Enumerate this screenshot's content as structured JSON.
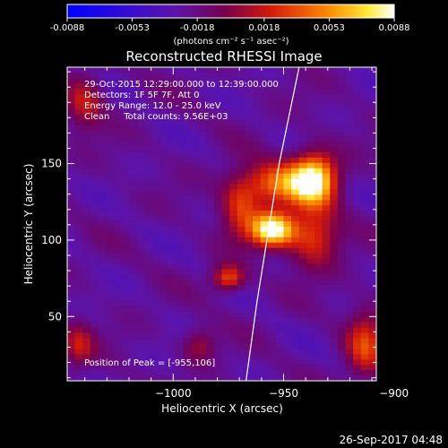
{
  "chart_data": {
    "type": "heatmap",
    "title": "Reconstructed RHESSI Image",
    "xlabel": "Heliocentric X (arcsec)",
    "ylabel": "Heliocentric Y (arcsec)",
    "xlim": [
      -1048,
      -908
    ],
    "ylim": [
      8,
      213
    ],
    "xticks": [
      -1000,
      -950,
      -900
    ],
    "yticks": [
      50,
      100,
      150
    ],
    "colorbar": {
      "range": [
        -0.0088,
        0.0088
      ],
      "tick_values": [
        -0.0088,
        -0.0053,
        -0.0018,
        0.0018,
        0.0053,
        0.0088
      ],
      "tick_labels": [
        "-0.0088",
        "-0.0053",
        "-0.0018",
        "0.0018",
        "0.0053",
        "0.0088"
      ],
      "units": "(photons cm⁻² s⁻¹ asec⁻²)"
    },
    "annotations": [
      "29-Oct-2015 12:29:00.000 to 12:39:00.000",
      "Detectors: 1F 5F 7F, Att 0",
      "Energy Range: 12.0 - 25.0 keV",
      "Clean     Total counts: 9.56E+03"
    ],
    "peak_label": "Position of Peak = [-955,106]",
    "peak": [
      -955,
      106
    ],
    "limb_curve": [
      [
        -967,
        8
      ],
      [
        -962,
        60
      ],
      [
        -957,
        105
      ],
      [
        -952,
        150
      ],
      [
        -943,
        213
      ]
    ],
    "sources": [
      {
        "x": -955,
        "y": 106,
        "sx": 7,
        "sy": 8,
        "amp": 1.0
      },
      {
        "x": -936,
        "y": 140,
        "sx": 7,
        "sy": 12,
        "amp": 0.85
      },
      {
        "x": -952,
        "y": 136,
        "sx": 12,
        "sy": 10,
        "amp": 0.62
      },
      {
        "x": -936,
        "y": 102,
        "sx": 8,
        "sy": 14,
        "amp": 0.5
      },
      {
        "x": -970,
        "y": 120,
        "sx": 6,
        "sy": 14,
        "amp": 0.4
      },
      {
        "x": -975,
        "y": 74,
        "sx": 5,
        "sy": 6,
        "amp": 0.55
      },
      {
        "x": -1040,
        "y": 190,
        "sx": 6,
        "sy": 12,
        "amp": 0.38
      },
      {
        "x": -913,
        "y": 30,
        "sx": 6,
        "sy": 16,
        "amp": 0.45
      },
      {
        "x": -1043,
        "y": 30,
        "sx": 5,
        "sy": 10,
        "amp": 0.35
      },
      {
        "x": -988,
        "y": 30,
        "sx": 5,
        "sy": 8,
        "amp": 0.28
      }
    ]
  },
  "footer": {
    "timestamp": "26-Sep-2017 04:48"
  }
}
